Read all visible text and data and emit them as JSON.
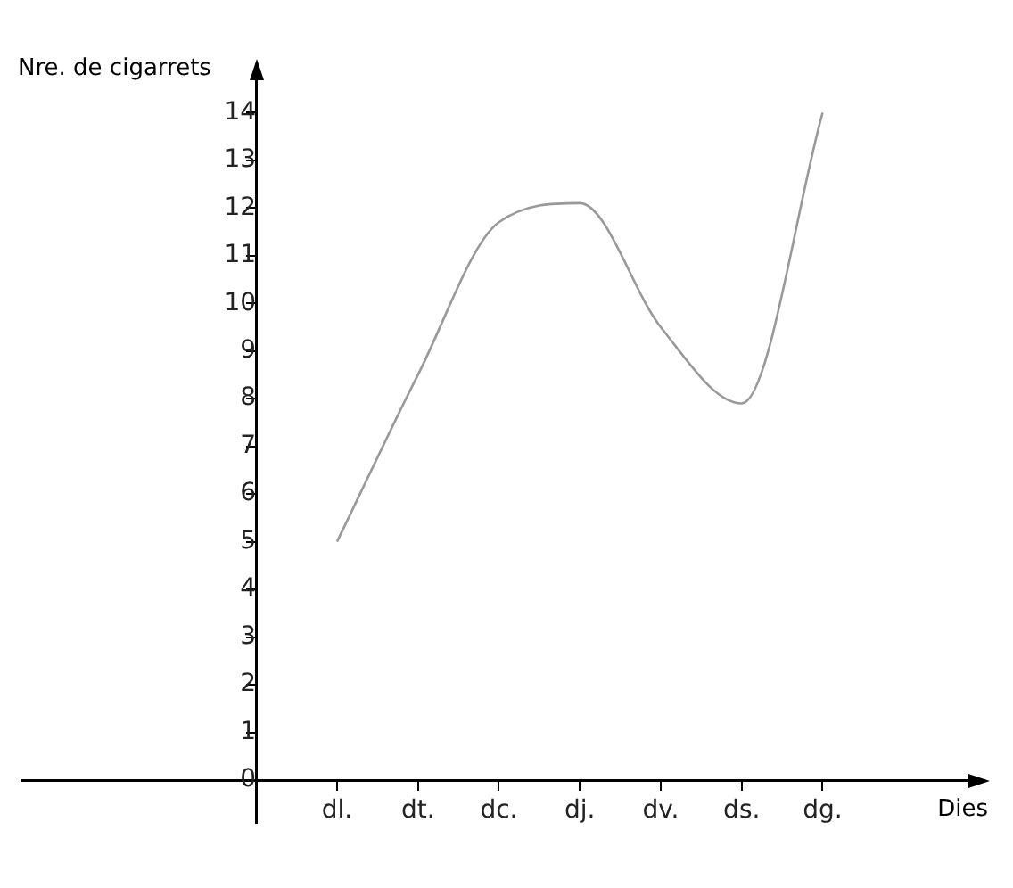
{
  "chart_data": {
    "type": "line",
    "xlabel": "Dies",
    "ylabel": "Nre. de cigarrets",
    "categories": [
      "dl.",
      "dt.",
      "dc.",
      "dj.",
      "dv.",
      "ds.",
      "dg."
    ],
    "ylim": [
      -0.9,
      15
    ],
    "yticks": [
      0,
      1,
      2,
      3,
      4,
      5,
      6,
      7,
      8,
      9,
      10,
      11,
      12,
      13,
      14
    ],
    "series": [
      {
        "color": "#999999",
        "values": [
          5,
          8.5,
          11.7,
          12.1,
          9.5,
          7.9,
          14
        ]
      }
    ],
    "grid": false,
    "legend": false,
    "marker": "none",
    "line_style": "solid"
  }
}
